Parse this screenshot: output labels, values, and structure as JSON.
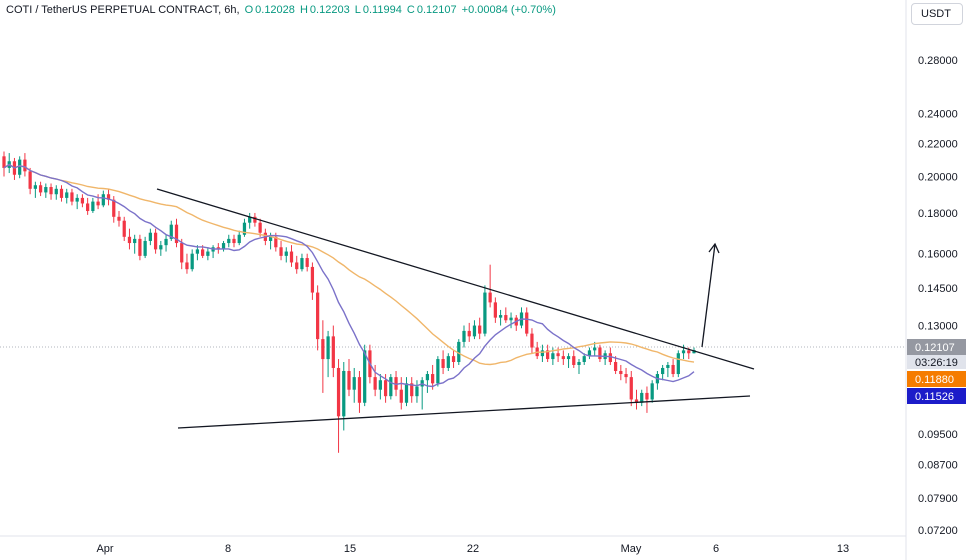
{
  "header": {
    "symbol": "COTI / TetherUS PERPETUAL CONTRACT, 6h,",
    "open_label": "O",
    "open": "0.12028",
    "high_label": "H",
    "high": "0.12203",
    "low_label": "L",
    "low": "0.11994",
    "close_label": "C",
    "close": "0.12107",
    "change": "+0.00084 (+0.70%)"
  },
  "currency": "USDT",
  "colors": {
    "up": "#089981",
    "down": "#f23645",
    "ma_fast": "#7b72c9",
    "ma_slow": "#f0b66a",
    "price_tag": "#9598a1",
    "ma_slow_tag": "#f57c00",
    "ma_fast_tag": "#1c1cc9"
  },
  "chart_data": {
    "type": "candlestick",
    "scale": "log",
    "ylim": [
      0.072,
      0.295
    ],
    "y_ticks": [
      "0.28000",
      "0.24000",
      "0.22000",
      "0.20000",
      "0.18000",
      "0.16000",
      "0.14500",
      "0.13000",
      "0.12107",
      "0.09500",
      "0.08700",
      "0.07900",
      "0.07200"
    ],
    "x_ticks": [
      "Apr",
      "8",
      "15",
      "22",
      "May",
      "6",
      "13"
    ],
    "last_price": "0.12107",
    "countdown": "03:26:19",
    "ma_slow_value": "0.11880",
    "ma_fast_value": "0.11526",
    "ohlc": [
      [
        0.212,
        0.215,
        0.2,
        0.205
      ],
      [
        0.205,
        0.214,
        0.202,
        0.209
      ],
      [
        0.209,
        0.211,
        0.198,
        0.201
      ],
      [
        0.201,
        0.212,
        0.199,
        0.21
      ],
      [
        0.21,
        0.214,
        0.2,
        0.203
      ],
      [
        0.203,
        0.205,
        0.19,
        0.193
      ],
      [
        0.193,
        0.197,
        0.188,
        0.195
      ],
      [
        0.195,
        0.197,
        0.189,
        0.191
      ],
      [
        0.191,
        0.196,
        0.188,
        0.194
      ],
      [
        0.194,
        0.196,
        0.187,
        0.19
      ],
      [
        0.19,
        0.195,
        0.187,
        0.193
      ],
      [
        0.193,
        0.195,
        0.186,
        0.188
      ],
      [
        0.188,
        0.193,
        0.185,
        0.191
      ],
      [
        0.191,
        0.193,
        0.184,
        0.186
      ],
      [
        0.186,
        0.19,
        0.182,
        0.188
      ],
      [
        0.188,
        0.19,
        0.183,
        0.185
      ],
      [
        0.185,
        0.188,
        0.179,
        0.181
      ],
      [
        0.181,
        0.188,
        0.18,
        0.186
      ],
      [
        0.186,
        0.19,
        0.182,
        0.184
      ],
      [
        0.184,
        0.192,
        0.183,
        0.19
      ],
      [
        0.19,
        0.193,
        0.184,
        0.187
      ],
      [
        0.187,
        0.189,
        0.175,
        0.178
      ],
      [
        0.178,
        0.181,
        0.173,
        0.176
      ],
      [
        0.176,
        0.178,
        0.166,
        0.168
      ],
      [
        0.168,
        0.172,
        0.162,
        0.165
      ],
      [
        0.165,
        0.169,
        0.16,
        0.167
      ],
      [
        0.167,
        0.169,
        0.157,
        0.159
      ],
      [
        0.159,
        0.168,
        0.158,
        0.166
      ],
      [
        0.166,
        0.172,
        0.164,
        0.17
      ],
      [
        0.17,
        0.172,
        0.16,
        0.162
      ],
      [
        0.162,
        0.166,
        0.159,
        0.164
      ],
      [
        0.164,
        0.169,
        0.161,
        0.167
      ],
      [
        0.167,
        0.176,
        0.166,
        0.174
      ],
      [
        0.174,
        0.177,
        0.163,
        0.165
      ],
      [
        0.165,
        0.167,
        0.153,
        0.156
      ],
      [
        0.156,
        0.16,
        0.151,
        0.153
      ],
      [
        0.153,
        0.162,
        0.152,
        0.16
      ],
      [
        0.16,
        0.164,
        0.157,
        0.162
      ],
      [
        0.162,
        0.164,
        0.158,
        0.159
      ],
      [
        0.159,
        0.163,
        0.157,
        0.161
      ],
      [
        0.161,
        0.164,
        0.158,
        0.163
      ],
      [
        0.163,
        0.165,
        0.16,
        0.162
      ],
      [
        0.162,
        0.166,
        0.161,
        0.165
      ],
      [
        0.165,
        0.169,
        0.163,
        0.167
      ],
      [
        0.167,
        0.169,
        0.163,
        0.165
      ],
      [
        0.165,
        0.171,
        0.164,
        0.169
      ],
      [
        0.169,
        0.177,
        0.168,
        0.175
      ],
      [
        0.175,
        0.18,
        0.172,
        0.178
      ],
      [
        0.178,
        0.18,
        0.173,
        0.175
      ],
      [
        0.175,
        0.177,
        0.168,
        0.17
      ],
      [
        0.17,
        0.172,
        0.164,
        0.166
      ],
      [
        0.166,
        0.17,
        0.162,
        0.168
      ],
      [
        0.168,
        0.17,
        0.161,
        0.163
      ],
      [
        0.163,
        0.166,
        0.157,
        0.159
      ],
      [
        0.159,
        0.163,
        0.156,
        0.161
      ],
      [
        0.161,
        0.164,
        0.154,
        0.156
      ],
      [
        0.156,
        0.159,
        0.151,
        0.153
      ],
      [
        0.153,
        0.16,
        0.152,
        0.158
      ],
      [
        0.158,
        0.16,
        0.152,
        0.154
      ],
      [
        0.154,
        0.156,
        0.14,
        0.143
      ],
      [
        0.143,
        0.146,
        0.121,
        0.125
      ],
      [
        0.125,
        0.132,
        0.107,
        0.118
      ],
      [
        0.118,
        0.128,
        0.112,
        0.126
      ],
      [
        0.126,
        0.13,
        0.112,
        0.115
      ],
      [
        0.115,
        0.118,
        0.09,
        0.1
      ],
      [
        0.1,
        0.117,
        0.096,
        0.114
      ],
      [
        0.114,
        0.118,
        0.106,
        0.108
      ],
      [
        0.108,
        0.115,
        0.104,
        0.112
      ],
      [
        0.112,
        0.114,
        0.101,
        0.104
      ],
      [
        0.104,
        0.123,
        0.103,
        0.121
      ],
      [
        0.121,
        0.123,
        0.11,
        0.112
      ],
      [
        0.112,
        0.116,
        0.106,
        0.108
      ],
      [
        0.108,
        0.113,
        0.105,
        0.111
      ],
      [
        0.111,
        0.113,
        0.104,
        0.106
      ],
      [
        0.106,
        0.113,
        0.105,
        0.112
      ],
      [
        0.112,
        0.114,
        0.106,
        0.108
      ],
      [
        0.108,
        0.112,
        0.102,
        0.104
      ],
      [
        0.104,
        0.112,
        0.103,
        0.11
      ],
      [
        0.11,
        0.112,
        0.104,
        0.106
      ],
      [
        0.106,
        0.111,
        0.104,
        0.109
      ],
      [
        0.109,
        0.112,
        0.102,
        0.111
      ],
      [
        0.111,
        0.114,
        0.107,
        0.113
      ],
      [
        0.113,
        0.116,
        0.108,
        0.11
      ],
      [
        0.11,
        0.119,
        0.109,
        0.118
      ],
      [
        0.118,
        0.121,
        0.113,
        0.115
      ],
      [
        0.115,
        0.12,
        0.114,
        0.119
      ],
      [
        0.119,
        0.121,
        0.115,
        0.117
      ],
      [
        0.117,
        0.125,
        0.116,
        0.124
      ],
      [
        0.124,
        0.13,
        0.122,
        0.128
      ],
      [
        0.128,
        0.131,
        0.124,
        0.126
      ],
      [
        0.126,
        0.132,
        0.125,
        0.13
      ],
      [
        0.13,
        0.133,
        0.125,
        0.127
      ],
      [
        0.127,
        0.146,
        0.126,
        0.143
      ],
      [
        0.143,
        0.155,
        0.137,
        0.139
      ],
      [
        0.139,
        0.141,
        0.131,
        0.133
      ],
      [
        0.133,
        0.136,
        0.13,
        0.134
      ],
      [
        0.134,
        0.137,
        0.131,
        0.132
      ],
      [
        0.132,
        0.135,
        0.129,
        0.133
      ],
      [
        0.133,
        0.134,
        0.128,
        0.13
      ],
      [
        0.13,
        0.137,
        0.129,
        0.135
      ],
      [
        0.135,
        0.137,
        0.126,
        0.127
      ],
      [
        0.127,
        0.129,
        0.12,
        0.122
      ],
      [
        0.122,
        0.124,
        0.118,
        0.119
      ],
      [
        0.119,
        0.123,
        0.117,
        0.121
      ],
      [
        0.121,
        0.123,
        0.117,
        0.118
      ],
      [
        0.118,
        0.122,
        0.116,
        0.12
      ],
      [
        0.12,
        0.122,
        0.117,
        0.119
      ],
      [
        0.119,
        0.121,
        0.116,
        0.118
      ],
      [
        0.118,
        0.12,
        0.115,
        0.119
      ],
      [
        0.119,
        0.121,
        0.115,
        0.116
      ],
      [
        0.116,
        0.118,
        0.113,
        0.117
      ],
      [
        0.117,
        0.12,
        0.116,
        0.119
      ],
      [
        0.119,
        0.122,
        0.118,
        0.121
      ],
      [
        0.121,
        0.124,
        0.119,
        0.122
      ],
      [
        0.122,
        0.123,
        0.117,
        0.118
      ],
      [
        0.118,
        0.121,
        0.116,
        0.12
      ],
      [
        0.12,
        0.122,
        0.116,
        0.117
      ],
      [
        0.117,
        0.119,
        0.113,
        0.114
      ],
      [
        0.114,
        0.116,
        0.111,
        0.113
      ],
      [
        0.113,
        0.115,
        0.11,
        0.112
      ],
      [
        0.112,
        0.114,
        0.103,
        0.105
      ],
      [
        0.105,
        0.108,
        0.102,
        0.104
      ],
      [
        0.104,
        0.108,
        0.103,
        0.107
      ],
      [
        0.107,
        0.109,
        0.101,
        0.105
      ],
      [
        0.105,
        0.111,
        0.104,
        0.11
      ],
      [
        0.11,
        0.114,
        0.108,
        0.113
      ],
      [
        0.113,
        0.116,
        0.111,
        0.115
      ],
      [
        0.115,
        0.117,
        0.112,
        0.116
      ],
      [
        0.116,
        0.118,
        0.112,
        0.113
      ],
      [
        0.113,
        0.121,
        0.112,
        0.12
      ],
      [
        0.12,
        0.123,
        0.118,
        0.121
      ],
      [
        0.121,
        0.122,
        0.118,
        0.12
      ],
      [
        0.12,
        0.122,
        0.1199,
        0.1211
      ]
    ],
    "trendline_resistance": [
      [
        0.1905,
        0
      ],
      [
        0.1148,
        1
      ]
    ],
    "trendline_support": [
      [
        0.0965,
        0
      ],
      [
        0.1063,
        1
      ]
    ]
  }
}
